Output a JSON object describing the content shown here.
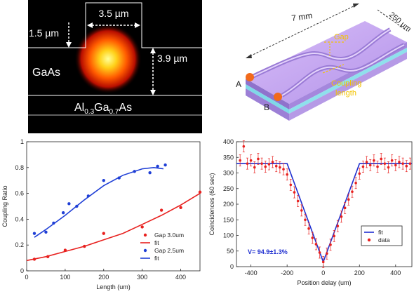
{
  "panel_a": {
    "width_label": "3.5 µm",
    "ridge_height_label": "1.5 µm",
    "depth_label": "3.9 µm",
    "core_label": "GaAs",
    "substrate_label_parts": [
      "Al",
      "0.3",
      "Ga",
      "0.7",
      "As"
    ]
  },
  "panel_b": {
    "length_label": "7 mm",
    "width_label": "250 µm",
    "gap_label": "Gap",
    "coupling_label_line1": "Coupling",
    "coupling_label_line2": "length",
    "port_a": "A",
    "port_b": "B",
    "colors": {
      "chip_top": "#c7a6ef",
      "chip_side": "#9c7fd6",
      "layer": "#7fd8e8",
      "port": "#f26a1b",
      "annot": "#f3c300"
    }
  },
  "chart_data": [
    {
      "type": "scatter",
      "xlabel": "Length (um)",
      "ylabel": "Coupling Ratio",
      "xlim": [
        0,
        450
      ],
      "ylim": [
        0,
        1
      ],
      "xticks": [
        "0",
        "100",
        "200",
        "300",
        "400"
      ],
      "yticks": [
        "0",
        "0.2",
        "0.4",
        "0.6",
        "0.8",
        "1"
      ],
      "legend_position": "bottom-right",
      "series": [
        {
          "name": "Gap 3.0um",
          "kind": "points",
          "color": "#e8211f",
          "x": [
            20,
            55,
            100,
            150,
            200,
            300,
            350,
            400,
            450
          ],
          "y": [
            0.09,
            0.11,
            0.16,
            0.19,
            0.29,
            0.34,
            0.47,
            0.49,
            0.61
          ]
        },
        {
          "name": "fit",
          "kind": "line",
          "color": "#e8211f",
          "x": [
            0,
            50,
            100,
            150,
            200,
            250,
            300,
            350,
            400,
            450
          ],
          "y": [
            0.08,
            0.11,
            0.15,
            0.19,
            0.24,
            0.29,
            0.36,
            0.43,
            0.51,
            0.6
          ]
        },
        {
          "name": "Gap 2.5um",
          "kind": "points",
          "color": "#1f3fd6",
          "x": [
            20,
            50,
            70,
            95,
            110,
            130,
            160,
            200,
            240,
            280,
            320,
            340,
            360
          ],
          "y": [
            0.29,
            0.3,
            0.37,
            0.45,
            0.52,
            0.5,
            0.58,
            0.7,
            0.72,
            0.77,
            0.76,
            0.81,
            0.82
          ]
        },
        {
          "name": "fit",
          "kind": "line",
          "color": "#1f3fd6",
          "x": [
            20,
            50,
            100,
            150,
            200,
            250,
            300,
            330,
            355
          ],
          "y": [
            0.26,
            0.32,
            0.43,
            0.55,
            0.66,
            0.74,
            0.79,
            0.8,
            0.79
          ]
        }
      ]
    },
    {
      "type": "scatter",
      "xlabel": "Position delay (um)",
      "ylabel": "Coincidences (60 sec)",
      "xlim": [
        -480,
        490
      ],
      "ylim": [
        0,
        400
      ],
      "xticks": [
        "-400",
        "-200",
        "0",
        "200",
        "400"
      ],
      "yticks": [
        "0",
        "50",
        "100",
        "150",
        "200",
        "250",
        "300",
        "350",
        "400"
      ],
      "legend_position": "bottom-right",
      "annotation": "V= 94.9±1.3%",
      "series": [
        {
          "name": "fit",
          "kind": "line",
          "color": "#1f2fd0",
          "x": [
            -480,
            -200,
            0,
            200,
            490
          ],
          "y": [
            330,
            330,
            15,
            330,
            330
          ]
        },
        {
          "name": "data",
          "kind": "points_err",
          "color": "#e8211f",
          "x": [
            -460,
            -440,
            -420,
            -400,
            -380,
            -360,
            -340,
            -320,
            -300,
            -280,
            -260,
            -240,
            -220,
            -200,
            -180,
            -160,
            -140,
            -120,
            -100,
            -80,
            -60,
            -40,
            -20,
            0,
            20,
            40,
            60,
            80,
            100,
            120,
            140,
            160,
            180,
            200,
            220,
            240,
            260,
            280,
            300,
            320,
            340,
            360,
            380,
            400,
            420,
            440,
            460,
            480
          ],
          "y": [
            340,
            385,
            330,
            340,
            318,
            345,
            330,
            320,
            328,
            335,
            322,
            318,
            312,
            295,
            262,
            238,
            210,
            180,
            150,
            122,
            92,
            72,
            45,
            15,
            42,
            70,
            98,
            130,
            160,
            188,
            215,
            240,
            268,
            298,
            320,
            335,
            325,
            340,
            320,
            345,
            330,
            318,
            340,
            325,
            335,
            330,
            322,
            330
          ],
          "err": 18
        }
      ]
    }
  ]
}
